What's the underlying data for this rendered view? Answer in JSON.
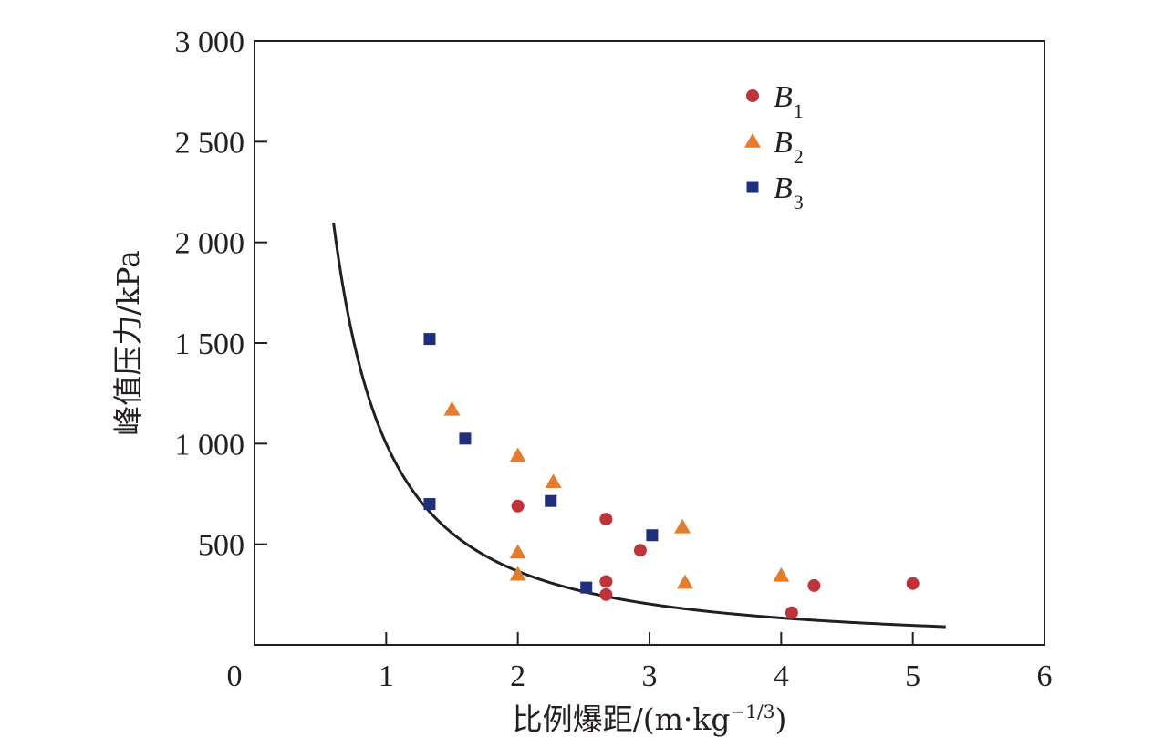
{
  "chart_data": {
    "type": "scatter",
    "title": "",
    "xlabel": "比例爆距/(m·kg",
    "xlabel_sup": "−1/3",
    "xlabel_close": ")",
    "ylabel": "峰值压力/kPa",
    "xlim": [
      0,
      6
    ],
    "ylim": [
      0,
      3000
    ],
    "x_ticks": [
      0,
      1,
      2,
      3,
      4,
      5,
      6
    ],
    "x_tick_labels": [
      "0",
      "1",
      "2",
      "3",
      "4",
      "5",
      "6"
    ],
    "y_ticks": [
      500,
      1000,
      1500,
      2000,
      2500,
      3000
    ],
    "y_tick_labels": [
      "500",
      "1 000",
      "1 500",
      "2 000",
      "2 500",
      "3 000"
    ],
    "grid": false,
    "legend_position": "top-right",
    "series": [
      {
        "name": "B",
        "subscript": "1",
        "marker": "circle",
        "color": "#c1333a",
        "points": [
          [
            2.0,
            690
          ],
          [
            2.67,
            625
          ],
          [
            2.67,
            315
          ],
          [
            2.67,
            250
          ],
          [
            2.93,
            470
          ],
          [
            4.08,
            160
          ],
          [
            4.25,
            295
          ],
          [
            5.0,
            305
          ]
        ]
      },
      {
        "name": "B",
        "subscript": "2",
        "marker": "triangle",
        "color": "#e57c2c",
        "points": [
          [
            1.5,
            1170
          ],
          [
            2.0,
            940
          ],
          [
            2.0,
            460
          ],
          [
            2.0,
            350
          ],
          [
            2.27,
            810
          ],
          [
            3.25,
            585
          ],
          [
            3.27,
            310
          ],
          [
            4.0,
            345
          ]
        ]
      },
      {
        "name": "B",
        "subscript": "3",
        "marker": "square",
        "color": "#1f2f7d",
        "points": [
          [
            1.33,
            1520
          ],
          [
            1.33,
            700
          ],
          [
            1.6,
            1025
          ],
          [
            2.25,
            715
          ],
          [
            2.52,
            285
          ],
          [
            3.02,
            545
          ]
        ]
      }
    ],
    "fit_curve": {
      "color": "#231f20",
      "formula": "y = 1000 * x^-1.45",
      "x_range": [
        0.6,
        5.25
      ],
      "coef": 1000,
      "exponent": -1.45
    }
  }
}
